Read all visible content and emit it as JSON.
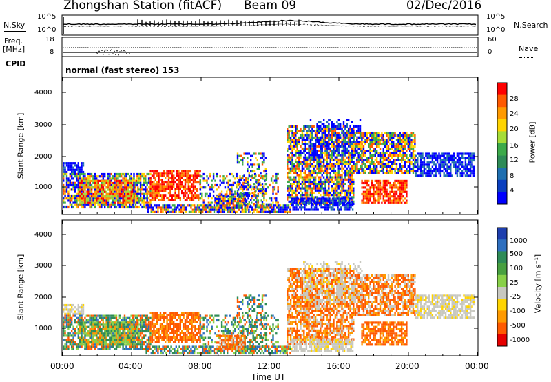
{
  "header": {
    "station": "Zhongshan Station (fitACF)",
    "beam": "Beam 09",
    "date": "02/Dec/2016"
  },
  "top_panels": {
    "nsky_label": "N.Sky",
    "nsky_ticks": [
      "10^5",
      "10^0"
    ],
    "nsearch_label": "N.Search",
    "nsearch_ticks": [
      "10^5",
      "10^0"
    ],
    "freq_label": "Freq.",
    "freq_unit": "[MHz]",
    "freq_ticks": [
      "18",
      "8"
    ],
    "nave_label": "Nave",
    "nave_ticks": [
      "60",
      "0"
    ],
    "cpid_label": "CPID",
    "cpid_value": "normal (fast stereo) 153"
  },
  "chart_data": [
    {
      "type": "heatmap",
      "name": "power",
      "ylabel": "Slant Range [km]",
      "yticks": [
        "4000",
        "3000",
        "2000",
        "1000"
      ],
      "ylim": [
        180,
        4500
      ],
      "colorbar": {
        "label": "Power [dB]",
        "ticks": [
          "28",
          "24",
          "20",
          "16",
          "12",
          "8",
          "4"
        ],
        "colors": [
          "#ff0000",
          "#ff5a00",
          "#ff9a00",
          "#ffd400",
          "#a6dd37",
          "#3caa4a",
          "#2e8b57",
          "#1f6fb0",
          "#0a3fbf",
          "#0000ff"
        ]
      }
    },
    {
      "type": "heatmap",
      "name": "velocity",
      "ylabel": "Slant Range [km]",
      "yticks": [
        "4000",
        "3000",
        "2000",
        "1000"
      ],
      "ylim": [
        180,
        4500
      ],
      "colorbar": {
        "label": "Velocity [m s⁻¹]",
        "ticks": [
          "1000",
          "500",
          "100",
          "25",
          "-25",
          "-100",
          "-500",
          "-1000"
        ],
        "colors": [
          "#1e3fae",
          "#2e6fbf",
          "#2e8b57",
          "#48a040",
          "#88d048",
          "#c8c8c0",
          "#ffd400",
          "#ff9a00",
          "#ff5a00",
          "#e60000"
        ]
      }
    }
  ],
  "xaxis": {
    "ticks": [
      "00:00",
      "04:00",
      "08:00",
      "12:00",
      "16:00",
      "20:00",
      "00:00"
    ],
    "label": "Time UT"
  }
}
